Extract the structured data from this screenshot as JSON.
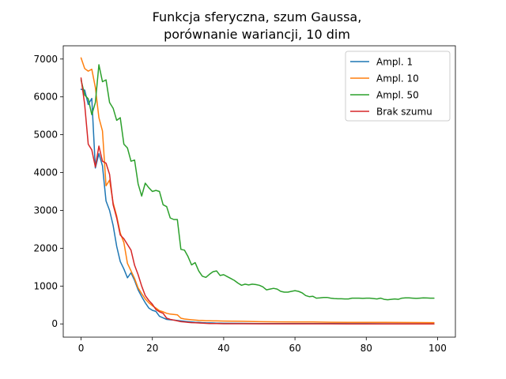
{
  "chart_data": {
    "type": "line",
    "title_lines": [
      "Funkcja sferyczna, szum Gaussa,",
      "porównanie wariancji, 10 dim"
    ],
    "xlabel": "",
    "ylabel": "",
    "xlim": [
      -5,
      105
    ],
    "ylim": [
      -350,
      7350
    ],
    "xticks": [
      0,
      20,
      40,
      60,
      80,
      100
    ],
    "yticks": [
      0,
      1000,
      2000,
      3000,
      4000,
      5000,
      6000,
      7000
    ],
    "grid": false,
    "legend_position": "top-right",
    "series": [
      {
        "name": "Ampl. 1",
        "color": "#1f77b4",
        "points": [
          [
            0,
            6200
          ],
          [
            1,
            6180
          ],
          [
            2,
            5800
          ],
          [
            3,
            5960
          ],
          [
            4,
            4120
          ],
          [
            5,
            4500
          ],
          [
            6,
            4180
          ],
          [
            7,
            3250
          ],
          [
            8,
            3000
          ],
          [
            9,
            2600
          ],
          [
            10,
            2050
          ],
          [
            11,
            1650
          ],
          [
            12,
            1450
          ],
          [
            13,
            1220
          ],
          [
            14,
            1350
          ],
          [
            15,
            1150
          ],
          [
            16,
            900
          ],
          [
            17,
            720
          ],
          [
            18,
            560
          ],
          [
            19,
            420
          ],
          [
            20,
            360
          ],
          [
            21,
            330
          ],
          [
            22,
            200
          ],
          [
            23,
            160
          ],
          [
            24,
            120
          ],
          [
            25,
            110
          ],
          [
            26,
            100
          ],
          [
            27,
            90
          ],
          [
            28,
            80
          ],
          [
            29,
            70
          ],
          [
            30,
            60
          ],
          [
            31,
            50
          ],
          [
            32,
            45
          ],
          [
            33,
            40
          ],
          [
            34,
            35
          ],
          [
            35,
            30
          ],
          [
            36,
            28
          ],
          [
            37,
            25
          ],
          [
            38,
            22
          ],
          [
            39,
            20
          ],
          [
            40,
            18
          ],
          [
            45,
            15
          ],
          [
            50,
            12
          ],
          [
            55,
            10
          ],
          [
            60,
            10
          ],
          [
            65,
            8
          ],
          [
            70,
            8
          ],
          [
            75,
            6
          ],
          [
            80,
            6
          ],
          [
            85,
            5
          ],
          [
            90,
            5
          ],
          [
            95,
            5
          ],
          [
            99,
            5
          ]
        ]
      },
      {
        "name": "Ampl. 10",
        "color": "#ff7f0e",
        "points": [
          [
            0,
            7030
          ],
          [
            1,
            6750
          ],
          [
            2,
            6680
          ],
          [
            3,
            6730
          ],
          [
            4,
            6250
          ],
          [
            5,
            5450
          ],
          [
            6,
            5100
          ],
          [
            7,
            3650
          ],
          [
            8,
            3800
          ],
          [
            9,
            3200
          ],
          [
            10,
            2850
          ],
          [
            11,
            2400
          ],
          [
            12,
            2150
          ],
          [
            13,
            1600
          ],
          [
            14,
            1400
          ],
          [
            15,
            1200
          ],
          [
            16,
            950
          ],
          [
            17,
            800
          ],
          [
            18,
            660
          ],
          [
            19,
            560
          ],
          [
            20,
            480
          ],
          [
            21,
            420
          ],
          [
            22,
            350
          ],
          [
            23,
            320
          ],
          [
            24,
            280
          ],
          [
            25,
            260
          ],
          [
            26,
            250
          ],
          [
            27,
            240
          ],
          [
            28,
            150
          ],
          [
            29,
            130
          ],
          [
            30,
            120
          ],
          [
            31,
            110
          ],
          [
            32,
            100
          ],
          [
            33,
            95
          ],
          [
            34,
            90
          ],
          [
            35,
            85
          ],
          [
            36,
            85
          ],
          [
            37,
            80
          ],
          [
            38,
            80
          ],
          [
            39,
            78
          ],
          [
            40,
            75
          ],
          [
            45,
            70
          ],
          [
            50,
            60
          ],
          [
            55,
            55
          ],
          [
            60,
            50
          ],
          [
            65,
            50
          ],
          [
            70,
            45
          ],
          [
            75,
            42
          ],
          [
            80,
            40
          ],
          [
            85,
            40
          ],
          [
            90,
            38
          ],
          [
            95,
            36
          ],
          [
            99,
            35
          ]
        ]
      },
      {
        "name": "Ampl. 50",
        "color": "#2ca02c",
        "points": [
          [
            0,
            6450
          ],
          [
            1,
            6050
          ],
          [
            2,
            5950
          ],
          [
            3,
            5530
          ],
          [
            4,
            5850
          ],
          [
            5,
            6850
          ],
          [
            6,
            6400
          ],
          [
            7,
            6450
          ],
          [
            8,
            5850
          ],
          [
            9,
            5700
          ],
          [
            10,
            5380
          ],
          [
            11,
            5450
          ],
          [
            12,
            4750
          ],
          [
            13,
            4650
          ],
          [
            14,
            4300
          ],
          [
            15,
            4330
          ],
          [
            16,
            3700
          ],
          [
            17,
            3380
          ],
          [
            18,
            3720
          ],
          [
            19,
            3600
          ],
          [
            20,
            3500
          ],
          [
            21,
            3530
          ],
          [
            22,
            3500
          ],
          [
            23,
            3150
          ],
          [
            24,
            3100
          ],
          [
            25,
            2800
          ],
          [
            26,
            2760
          ],
          [
            27,
            2760
          ],
          [
            28,
            1970
          ],
          [
            29,
            1950
          ],
          [
            30,
            1780
          ],
          [
            31,
            1560
          ],
          [
            32,
            1620
          ],
          [
            33,
            1400
          ],
          [
            34,
            1260
          ],
          [
            35,
            1230
          ],
          [
            36,
            1310
          ],
          [
            37,
            1380
          ],
          [
            38,
            1400
          ],
          [
            39,
            1280
          ],
          [
            40,
            1300
          ],
          [
            41,
            1250
          ],
          [
            42,
            1200
          ],
          [
            43,
            1150
          ],
          [
            44,
            1080
          ],
          [
            45,
            1020
          ],
          [
            46,
            1050
          ],
          [
            47,
            1030
          ],
          [
            48,
            1050
          ],
          [
            49,
            1040
          ],
          [
            50,
            1020
          ],
          [
            51,
            980
          ],
          [
            52,
            900
          ],
          [
            53,
            920
          ],
          [
            54,
            940
          ],
          [
            55,
            920
          ],
          [
            56,
            860
          ],
          [
            57,
            840
          ],
          [
            58,
            840
          ],
          [
            59,
            860
          ],
          [
            60,
            880
          ],
          [
            61,
            860
          ],
          [
            62,
            820
          ],
          [
            63,
            750
          ],
          [
            64,
            720
          ],
          [
            65,
            730
          ],
          [
            66,
            680
          ],
          [
            67,
            690
          ],
          [
            68,
            700
          ],
          [
            69,
            700
          ],
          [
            70,
            680
          ],
          [
            71,
            670
          ],
          [
            72,
            665
          ],
          [
            73,
            665
          ],
          [
            74,
            660
          ],
          [
            75,
            660
          ],
          [
            76,
            680
          ],
          [
            77,
            680
          ],
          [
            78,
            680
          ],
          [
            79,
            675
          ],
          [
            80,
            680
          ],
          [
            81,
            680
          ],
          [
            82,
            670
          ],
          [
            83,
            660
          ],
          [
            84,
            680
          ],
          [
            85,
            650
          ],
          [
            86,
            640
          ],
          [
            87,
            650
          ],
          [
            88,
            660
          ],
          [
            89,
            650
          ],
          [
            90,
            680
          ],
          [
            91,
            690
          ],
          [
            92,
            690
          ],
          [
            93,
            680
          ],
          [
            94,
            675
          ],
          [
            95,
            680
          ],
          [
            96,
            690
          ],
          [
            97,
            685
          ],
          [
            98,
            680
          ],
          [
            99,
            680
          ]
        ]
      },
      {
        "name": "Brak szumu",
        "color": "#d62728",
        "points": [
          [
            0,
            6500
          ],
          [
            1,
            5800
          ],
          [
            2,
            4750
          ],
          [
            3,
            4600
          ],
          [
            4,
            4150
          ],
          [
            5,
            4700
          ],
          [
            6,
            4300
          ],
          [
            7,
            4250
          ],
          [
            8,
            3950
          ],
          [
            9,
            3150
          ],
          [
            10,
            2800
          ],
          [
            11,
            2350
          ],
          [
            12,
            2250
          ],
          [
            13,
            2100
          ],
          [
            14,
            1950
          ],
          [
            15,
            1550
          ],
          [
            16,
            1300
          ],
          [
            17,
            1000
          ],
          [
            18,
            750
          ],
          [
            19,
            620
          ],
          [
            20,
            520
          ],
          [
            21,
            380
          ],
          [
            22,
            320
          ],
          [
            23,
            280
          ],
          [
            24,
            150
          ],
          [
            25,
            120
          ],
          [
            26,
            100
          ],
          [
            27,
            80
          ],
          [
            28,
            60
          ],
          [
            29,
            50
          ],
          [
            30,
            40
          ],
          [
            31,
            35
          ],
          [
            32,
            30
          ],
          [
            33,
            25
          ],
          [
            34,
            20
          ],
          [
            35,
            15
          ],
          [
            36,
            12
          ],
          [
            37,
            10
          ],
          [
            38,
            8
          ],
          [
            39,
            6
          ],
          [
            40,
            5
          ],
          [
            45,
            4
          ],
          [
            50,
            3
          ],
          [
            55,
            3
          ],
          [
            60,
            2
          ],
          [
            65,
            2
          ],
          [
            70,
            2
          ],
          [
            75,
            1
          ],
          [
            80,
            1
          ],
          [
            85,
            1
          ],
          [
            90,
            1
          ],
          [
            95,
            1
          ],
          [
            99,
            1
          ]
        ]
      }
    ]
  }
}
